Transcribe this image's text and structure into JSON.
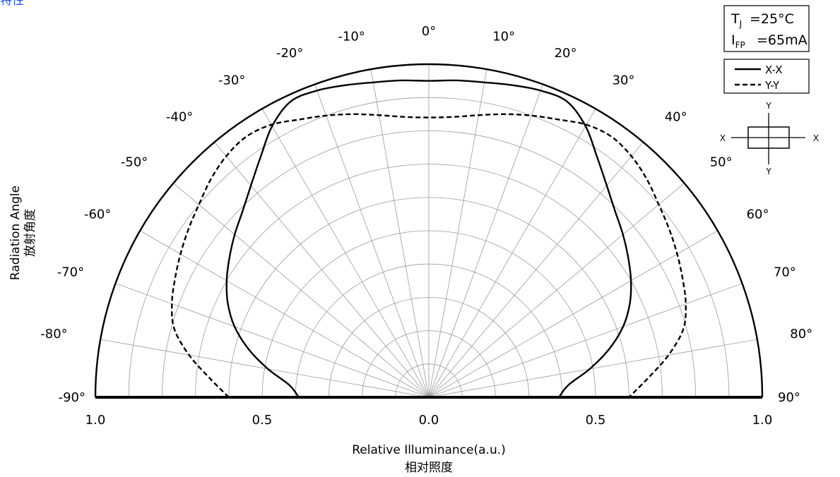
{
  "page": {
    "corner_text": "特性"
  },
  "chart_data": {
    "type": "line",
    "coordinate_system": "polar-half",
    "xlabel": "Relative Illuminance(a.u.)",
    "xlabel_cn": "相对照度",
    "ylabel": "Radiation Angle",
    "ylabel_cn": "放射角度",
    "angle_range": [
      -90,
      90
    ],
    "radius_range": [
      0,
      1.0
    ],
    "grid": true,
    "angle_ticks": [
      -90,
      -80,
      -70,
      -60,
      -50,
      -40,
      -30,
      -20,
      -10,
      0,
      10,
      20,
      30,
      40,
      50,
      60,
      70,
      80,
      90
    ],
    "angle_tick_labels": [
      "-90°",
      "-80°",
      "-70°",
      "-60°",
      "-50°",
      "-40°",
      "-30°",
      "-20°",
      "-10°",
      "0°",
      "10°",
      "20°",
      "30°",
      "40°",
      "50°",
      "60°",
      "70°",
      "80°",
      "90°"
    ],
    "radius_tick_labels": [
      "1.0",
      "0.5",
      "0.0",
      "0.5",
      "1.0"
    ],
    "conditions": {
      "tj": "=25°C",
      "ifp": "=65mA"
    },
    "series": [
      {
        "name": "X-X",
        "style": "solid",
        "points": [
          [
            -90,
            0.39
          ],
          [
            -85,
            0.42
          ],
          [
            -80,
            0.49
          ],
          [
            -75,
            0.56
          ],
          [
            -70,
            0.62
          ],
          [
            -65,
            0.665
          ],
          [
            -60,
            0.7
          ],
          [
            -55,
            0.73
          ],
          [
            -50,
            0.76
          ],
          [
            -45,
            0.79
          ],
          [
            -40,
            0.83
          ],
          [
            -35,
            0.88
          ],
          [
            -30,
            0.94
          ],
          [
            -25,
            0.98
          ],
          [
            -20,
            0.98
          ],
          [
            -15,
            0.97
          ],
          [
            -10,
            0.96
          ],
          [
            -5,
            0.955
          ],
          [
            0,
            0.95
          ],
          [
            5,
            0.955
          ],
          [
            10,
            0.96
          ],
          [
            15,
            0.97
          ],
          [
            20,
            0.98
          ],
          [
            25,
            0.98
          ],
          [
            30,
            0.94
          ],
          [
            35,
            0.88
          ],
          [
            40,
            0.83
          ],
          [
            45,
            0.79
          ],
          [
            50,
            0.76
          ],
          [
            55,
            0.73
          ],
          [
            60,
            0.7
          ],
          [
            65,
            0.665
          ],
          [
            70,
            0.62
          ],
          [
            75,
            0.56
          ],
          [
            80,
            0.49
          ],
          [
            85,
            0.42
          ],
          [
            90,
            0.39
          ]
        ]
      },
      {
        "name": "Y-Y",
        "style": "dashed",
        "points": [
          [
            -90,
            0.6
          ],
          [
            -85,
            0.66
          ],
          [
            -80,
            0.73
          ],
          [
            -75,
            0.79
          ],
          [
            -70,
            0.82
          ],
          [
            -65,
            0.84
          ],
          [
            -60,
            0.86
          ],
          [
            -55,
            0.88
          ],
          [
            -50,
            0.9
          ],
          [
            -45,
            0.925
          ],
          [
            -40,
            0.945
          ],
          [
            -35,
            0.955
          ],
          [
            -30,
            0.945
          ],
          [
            -25,
            0.92
          ],
          [
            -20,
            0.9
          ],
          [
            -15,
            0.88
          ],
          [
            -10,
            0.86
          ],
          [
            -5,
            0.845
          ],
          [
            0,
            0.84
          ],
          [
            5,
            0.845
          ],
          [
            10,
            0.86
          ],
          [
            15,
            0.88
          ],
          [
            20,
            0.9
          ],
          [
            25,
            0.92
          ],
          [
            30,
            0.945
          ],
          [
            35,
            0.955
          ],
          [
            40,
            0.945
          ],
          [
            45,
            0.925
          ],
          [
            50,
            0.9
          ],
          [
            55,
            0.88
          ],
          [
            60,
            0.86
          ],
          [
            65,
            0.84
          ],
          [
            70,
            0.82
          ],
          [
            75,
            0.79
          ],
          [
            80,
            0.73
          ],
          [
            85,
            0.66
          ],
          [
            90,
            0.6
          ]
        ]
      }
    ],
    "legend": {
      "placement": "top-right",
      "entries": [
        "X-X",
        "Y-Y"
      ]
    },
    "orientation_diagram": {
      "labels": [
        "X",
        "X",
        "Y",
        "Y"
      ]
    }
  }
}
